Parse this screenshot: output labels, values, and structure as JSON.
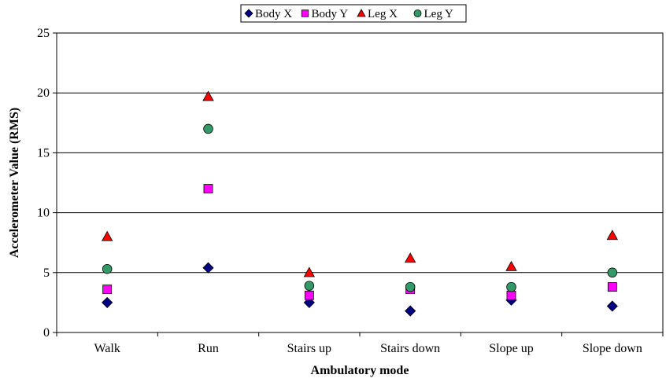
{
  "chart_data": {
    "type": "scatter",
    "title": "",
    "xlabel": "Ambulatory mode",
    "ylabel": "Accelerometer Value (RMS)",
    "categories": [
      "Walk",
      "Run",
      "Stairs up",
      "Stairs down",
      "Slope up",
      "Slope down"
    ],
    "ylim": [
      0,
      25
    ],
    "yticks": [
      0,
      5,
      10,
      15,
      20,
      25
    ],
    "grid": true,
    "legend_position": "top",
    "series": [
      {
        "name": "Body X",
        "marker": "diamond",
        "color": "#000080",
        "values": [
          2.5,
          5.4,
          2.5,
          1.8,
          2.7,
          2.2
        ]
      },
      {
        "name": "Body Y",
        "marker": "square",
        "color": "#FF00FF",
        "values": [
          3.6,
          12.0,
          3.1,
          3.6,
          3.1,
          3.8
        ]
      },
      {
        "name": "Leg X",
        "marker": "triangle",
        "color": "#FF0000",
        "values": [
          8.0,
          19.7,
          5.0,
          6.2,
          5.5,
          8.1
        ]
      },
      {
        "name": "Leg Y",
        "marker": "circle",
        "color": "#339966",
        "values": [
          5.3,
          17.0,
          3.9,
          3.8,
          3.8,
          5.0
        ]
      }
    ]
  }
}
